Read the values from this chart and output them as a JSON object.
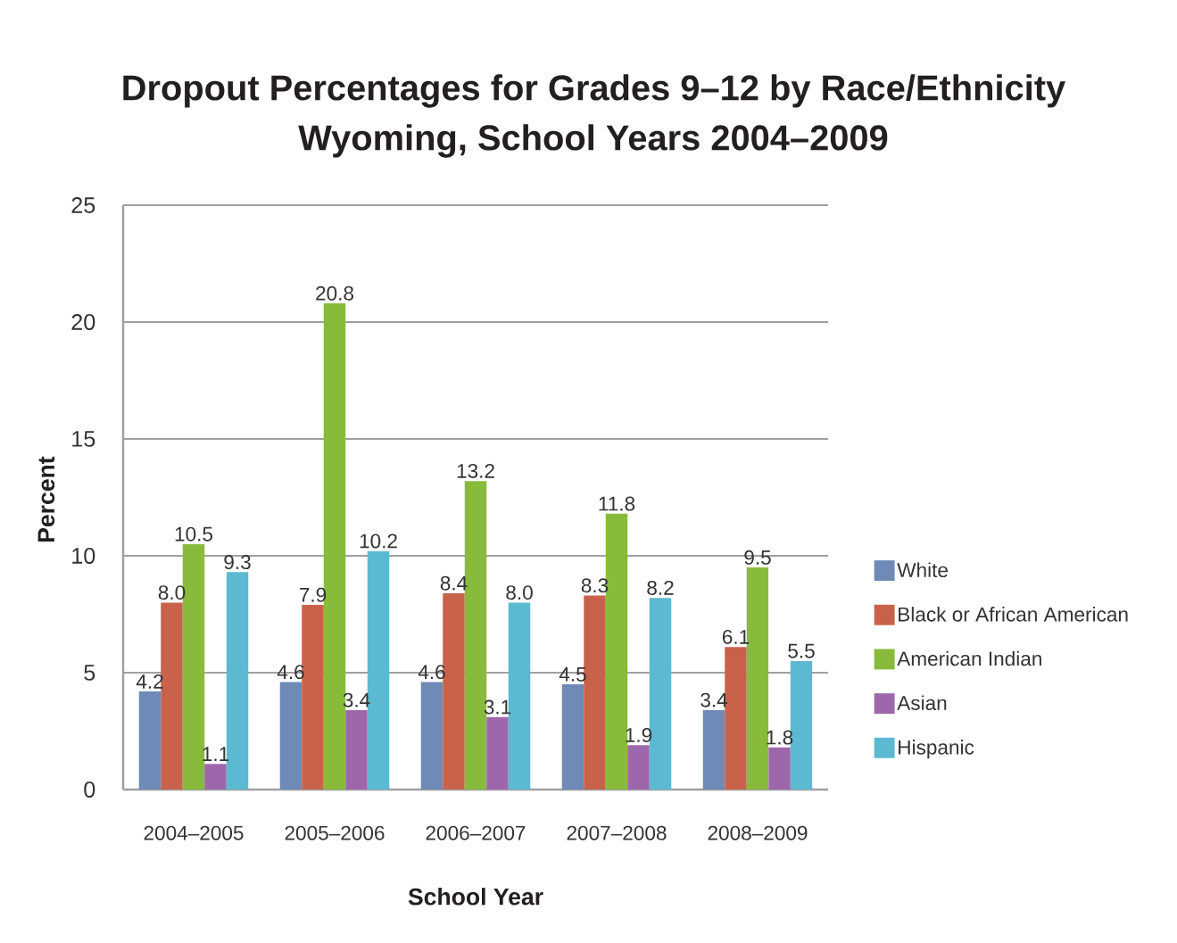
{
  "chart_data": {
    "type": "bar",
    "title": "Dropout Percentages for Grades 9–12 by Race/Ethnicity",
    "subtitle": "Wyoming, School Years 2004–2009",
    "xlabel": "School Year",
    "ylabel": "Percent",
    "categories": [
      "2004–2005",
      "2005–2006",
      "2006–2007",
      "2007–2008",
      "2008–2009"
    ],
    "series": [
      {
        "name": "White",
        "color": "#6f8ab7",
        "values": [
          4.2,
          4.6,
          4.6,
          4.5,
          3.4
        ],
        "value_labels": [
          "4.2",
          "4.6",
          "4.6",
          "4.5",
          "3.4"
        ]
      },
      {
        "name": "Black or African American",
        "color": "#c9624a",
        "values": [
          8.0,
          7.9,
          8.4,
          8.3,
          6.1
        ],
        "value_labels": [
          "8.0",
          "7.9",
          "8.4",
          "8.3",
          "6.1"
        ]
      },
      {
        "name": "American Indian",
        "color": "#88bb3c",
        "values": [
          10.5,
          20.8,
          13.2,
          11.8,
          9.5
        ],
        "value_labels": [
          "10.5",
          "20.8",
          "13.2",
          "11.8",
          "9.5"
        ]
      },
      {
        "name": "Asian",
        "color": "#9e67ab",
        "values": [
          1.1,
          3.4,
          3.1,
          1.9,
          1.8
        ],
        "value_labels": [
          "1.1",
          "3.4",
          "3.1",
          "1.9",
          "1.8"
        ]
      },
      {
        "name": "Hispanic",
        "color": "#5bbad1",
        "values": [
          9.3,
          10.2,
          8.0,
          8.2,
          5.5
        ],
        "value_labels": [
          "9.3",
          "10.2",
          "8.0",
          "8.2",
          "5.5"
        ]
      }
    ],
    "ylim": [
      0,
      25
    ],
    "yticks": [
      0,
      5,
      10,
      15,
      20,
      25
    ],
    "grid": "y",
    "legend": "right"
  }
}
